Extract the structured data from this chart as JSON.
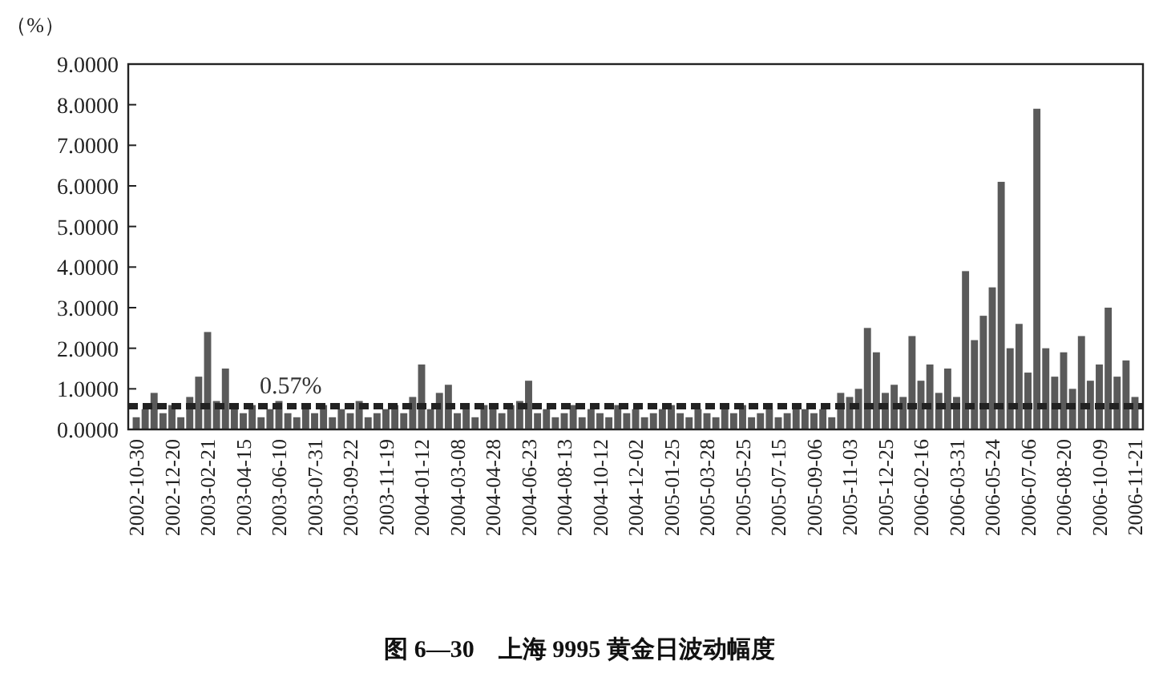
{
  "chart_data": {
    "type": "bar",
    "title": "图 6—30　上海 9995 黄金日波动幅度",
    "ylabel": "（%）",
    "categories": [
      "2002-10-30",
      null,
      null,
      null,
      "2002-12-20",
      null,
      null,
      null,
      "2003-02-21",
      null,
      null,
      null,
      "2003-04-15",
      null,
      null,
      null,
      "2003-06-10",
      null,
      null,
      null,
      "2003-07-31",
      null,
      null,
      null,
      "2003-09-22",
      null,
      null,
      null,
      "2003-11-19",
      null,
      null,
      null,
      "2004-01-12",
      null,
      null,
      null,
      "2004-03-08",
      null,
      null,
      null,
      "2004-04-28",
      null,
      null,
      null,
      "2004-06-23",
      null,
      null,
      null,
      "2004-08-13",
      null,
      null,
      null,
      "2004-10-12",
      null,
      null,
      null,
      "2004-12-02",
      null,
      null,
      null,
      "2005-01-25",
      null,
      null,
      null,
      "2005-03-28",
      null,
      null,
      null,
      "2005-05-25",
      null,
      null,
      null,
      "2005-07-15",
      null,
      null,
      null,
      "2005-09-06",
      null,
      null,
      null,
      "2005-11-03",
      null,
      null,
      null,
      "2005-12-25",
      null,
      null,
      null,
      "2006-02-16",
      null,
      null,
      null,
      "2006-03-31",
      null,
      null,
      null,
      "2006-05-24",
      null,
      null,
      null,
      "2006-07-06",
      null,
      null,
      null,
      "2006-08-20",
      null,
      null,
      null,
      "2006-10-09",
      null,
      null,
      null,
      "2006-11-21"
    ],
    "values": [
      0.3,
      0.5,
      0.9,
      0.4,
      0.6,
      0.3,
      0.8,
      1.3,
      2.4,
      0.7,
      1.5,
      0.5,
      0.4,
      0.6,
      0.3,
      0.5,
      0.7,
      0.4,
      0.3,
      0.5,
      0.4,
      0.6,
      0.3,
      0.5,
      0.4,
      0.7,
      0.3,
      0.4,
      0.5,
      0.6,
      0.4,
      0.8,
      1.6,
      0.5,
      0.9,
      1.1,
      0.4,
      0.5,
      0.3,
      0.6,
      0.5,
      0.4,
      0.6,
      0.7,
      1.2,
      0.4,
      0.5,
      0.3,
      0.4,
      0.6,
      0.3,
      0.5,
      0.4,
      0.3,
      0.6,
      0.4,
      0.5,
      0.3,
      0.4,
      0.5,
      0.6,
      0.4,
      0.3,
      0.5,
      0.4,
      0.3,
      0.5,
      0.4,
      0.6,
      0.3,
      0.4,
      0.5,
      0.3,
      0.4,
      0.6,
      0.5,
      0.4,
      0.5,
      0.3,
      0.9,
      0.8,
      1.0,
      2.5,
      1.9,
      0.9,
      1.1,
      0.8,
      2.3,
      1.2,
      1.6,
      0.9,
      1.5,
      0.8,
      3.9,
      2.2,
      2.8,
      3.5,
      6.1,
      2.0,
      2.6,
      1.4,
      7.9,
      2.0,
      1.3,
      1.9,
      1.0,
      2.3,
      1.2,
      1.6,
      3.0,
      1.3,
      1.7,
      0.8
    ],
    "color": "#5a5a5a",
    "ylim": [
      0,
      9
    ],
    "yticks": [
      {
        "value": 0,
        "label": "0.0000"
      },
      {
        "value": 1,
        "label": "1.0000"
      },
      {
        "value": 2,
        "label": "2.0000"
      },
      {
        "value": 3,
        "label": "3.0000"
      },
      {
        "value": 4,
        "label": "4.0000"
      },
      {
        "value": 5,
        "label": "5.0000"
      },
      {
        "value": 6,
        "label": "6.0000"
      },
      {
        "value": 7,
        "label": "7.0000"
      },
      {
        "value": 8,
        "label": "8.0000"
      },
      {
        "value": 9,
        "label": "9.0000"
      }
    ],
    "ref_lines": [
      {
        "axis": "y",
        "value": 0.57,
        "label": "0.57%",
        "color": "#222222",
        "line_style": "dashed"
      }
    ]
  }
}
